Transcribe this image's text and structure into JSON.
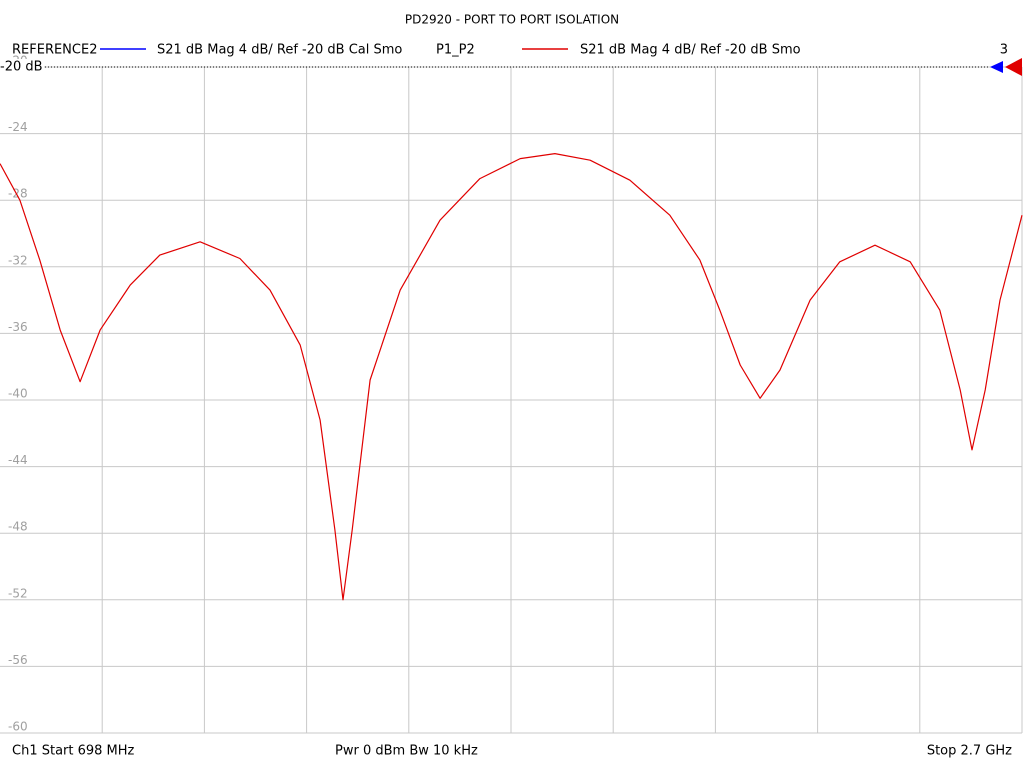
{
  "chart_data": {
    "type": "line",
    "title": "PD2920 - PORT TO PORT ISOLATION",
    "reference": {
      "name": "REFERENCE2",
      "color": "#0000ff",
      "label": "S21  dB Mag  4 dB/ Ref -20 dB  Cal Smo"
    },
    "series": [
      {
        "name": "P1_P2",
        "label": "S21  dB Mag  4 dB/ Ref -20 dB  Smo",
        "color": "#e00000",
        "values": [
          -25.8,
          -28.0,
          -31.6,
          -35.8,
          -38.9,
          -35.8,
          -33.1,
          -31.3,
          -30.5,
          -31.5,
          -33.4,
          -36.7,
          -41.2,
          -47.8,
          -52.0,
          -47.8,
          -38.8,
          -33.4,
          -29.2,
          -26.7,
          -25.5,
          -25.2,
          -25.6,
          -26.8,
          -28.9,
          -31.6,
          -34.6,
          -37.9,
          -39.9,
          -38.2,
          -34.0,
          -31.7,
          -30.7,
          -31.7,
          -34.6,
          -39.4,
          -43.0,
          -39.4,
          -34.0,
          -28.9
        ]
      }
    ],
    "x": [
      698,
      737,
      776,
      816,
      855,
      894,
      953,
      1011,
      1090,
      1168,
      1227,
      1286,
      1325,
      1354,
      1370,
      1388,
      1423,
      1482,
      1560,
      1638,
      1717,
      1785,
      1854,
      1932,
      2010,
      2069,
      2108,
      2148,
      2187,
      2226,
      2285,
      2343,
      2412,
      2481,
      2539,
      2579,
      2602,
      2628,
      2657,
      2700
    ],
    "xlim": [
      698,
      2700
    ],
    "ylim": [
      -20,
      -60
    ],
    "yticks": [
      -20,
      -24,
      -28,
      -32,
      -36,
      -40,
      -44,
      -48,
      -52,
      -56,
      -60
    ],
    "grid": true,
    "ref_label": "-20 dB",
    "marker_count": "3",
    "footer": {
      "start": "Ch1  Start  698 MHz",
      "power": "Pwr  0 dBm  Bw  10 kHz",
      "stop": "Stop  2.7 GHz"
    }
  }
}
